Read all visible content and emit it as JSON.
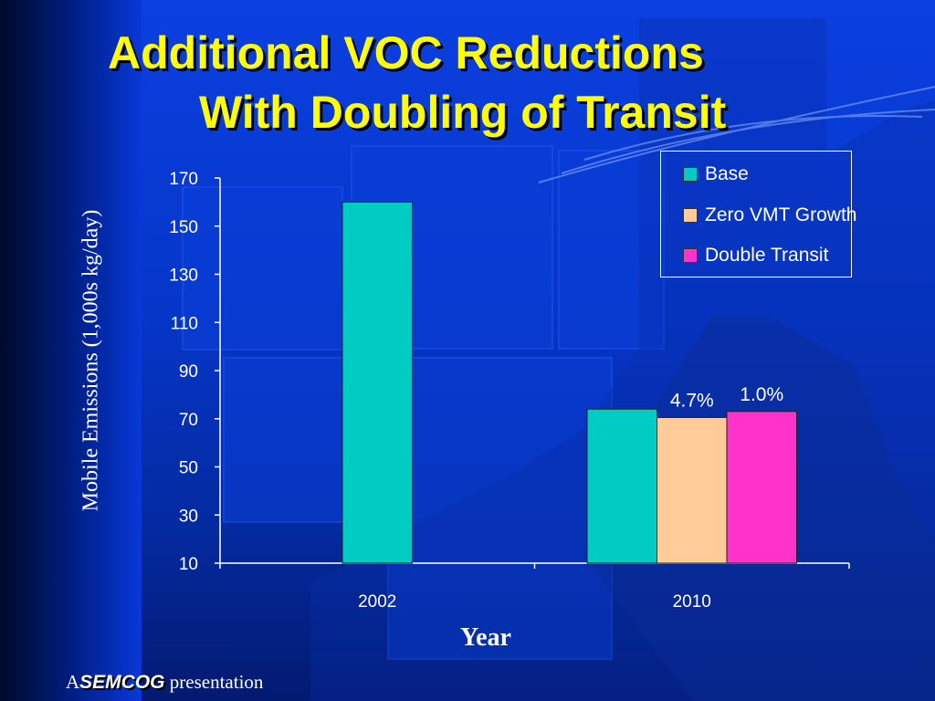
{
  "slide": {
    "title_line1": "Additional VOC Reductions",
    "title_line2": "With Doubling of Transit",
    "footer": {
      "prefix": "A",
      "brand": "SEMCOG",
      "suffix": "presentation"
    }
  },
  "colors": {
    "title": "#ffff00",
    "background": "#0636c8",
    "base": "#00ccc4",
    "zero_vmt": "#ffcc99",
    "double_transit": "#ff33cc"
  },
  "chart_data": {
    "type": "bar",
    "title": "",
    "xlabel": "Year",
    "ylabel": "Mobile Emissions (1,000s kg/day)",
    "categories": [
      "2002",
      "2010"
    ],
    "ylim": [
      10,
      170
    ],
    "yticks": [
      "170",
      "150",
      "130",
      "110",
      "90",
      "70",
      "50",
      "30",
      "10"
    ],
    "legend_position": "top-right",
    "grid": false,
    "series": [
      {
        "name": "Base",
        "color": "#00ccc4",
        "values": [
          160,
          74
        ],
        "labels": [
          "",
          ""
        ]
      },
      {
        "name": "Zero VMT Growth",
        "color": "#ffcc99",
        "values": [
          null,
          70.5
        ],
        "labels": [
          "",
          "4.7%"
        ]
      },
      {
        "name": "Double Transit",
        "color": "#ff33cc",
        "values": [
          null,
          73
        ],
        "labels": [
          "",
          "1.0%"
        ]
      }
    ]
  }
}
